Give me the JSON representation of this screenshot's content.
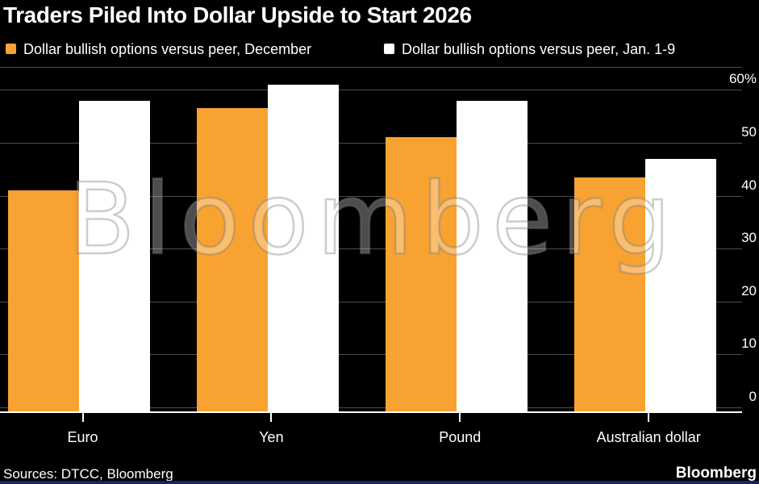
{
  "title": "Traders Piled Into Dollar Upside to Start 2026",
  "legend": [
    {
      "label": "Dollar bullish options versus peer, December",
      "color": "#F8A232"
    },
    {
      "label": "Dollar bullish options versus peer, Jan. 1-9",
      "color": "#FFFFFF"
    }
  ],
  "watermark": "Bloomberg",
  "footer": {
    "sources": "Sources: DTCC, Bloomberg",
    "brand": "Bloomberg"
  },
  "colors": {
    "background": "#000000",
    "accent_orange": "#F8A232",
    "bar_white": "#FFFFFF",
    "gridline": "#4d4d4d",
    "axis_line": "#FFFFFF",
    "brand_blue": "#1B2264"
  },
  "chart_data": {
    "type": "bar",
    "title": "Traders Piled Into Dollar Upside to Start 2026",
    "categories": [
      "Euro",
      "Yen",
      "Pound",
      "Australian dollar"
    ],
    "series": [
      {
        "name": "Dollar bullish options versus peer, December",
        "color": "#F8A232",
        "values": [
          41,
          56.5,
          51,
          43.5
        ]
      },
      {
        "name": "Dollar bullish options versus peer, Jan. 1-9",
        "color": "#FFFFFF",
        "values": [
          58,
          61,
          58,
          47
        ]
      }
    ],
    "xlabel": "",
    "ylabel": "",
    "unit": "%",
    "y_ticks": [
      "60%",
      "50",
      "40",
      "30",
      "20",
      "10",
      "0"
    ],
    "y_tick_values": [
      60,
      50,
      40,
      30,
      20,
      10,
      0
    ],
    "ylim": [
      0,
      65
    ],
    "grid": "horizontal",
    "legend_position": "top"
  }
}
